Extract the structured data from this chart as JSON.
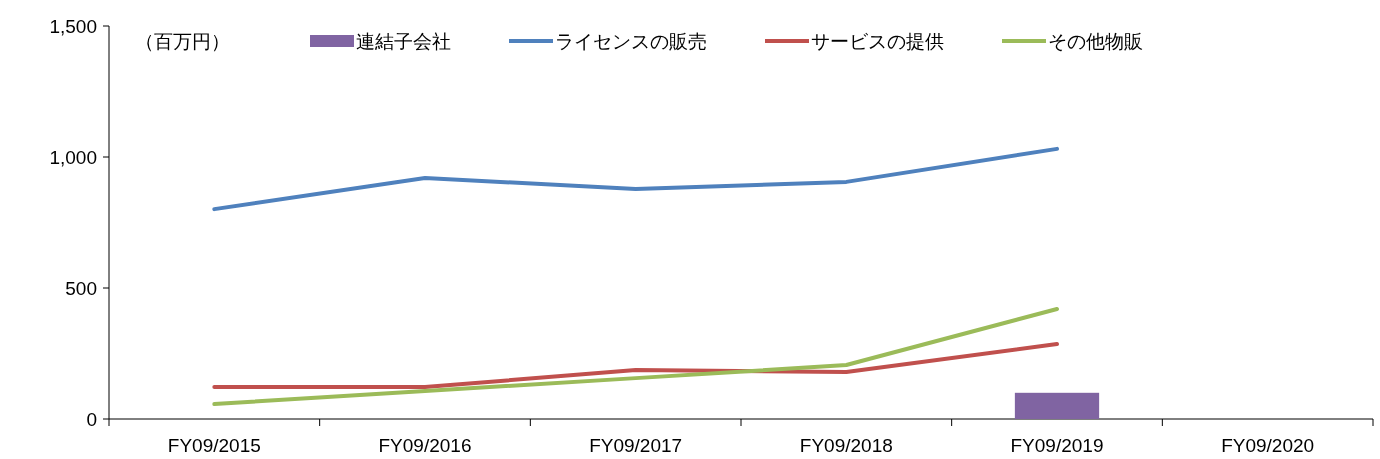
{
  "chart_data": {
    "type": "line",
    "categories": [
      "FY09/2015",
      "FY09/2016",
      "FY09/2017",
      "FY09/2018",
      "FY09/2019",
      "FY09/2020"
    ],
    "series": [
      {
        "name": "連結子会社",
        "type": "bar",
        "color": "#8064a2",
        "values": [
          null,
          null,
          null,
          null,
          100,
          null
        ]
      },
      {
        "name": "ライセンスの販売",
        "color": "#4f81bd",
        "values": [
          801,
          920,
          878,
          905,
          1031,
          null
        ]
      },
      {
        "name": "サービスの提供",
        "color": "#c0504d",
        "values": [
          122,
          122,
          187,
          179,
          286,
          null
        ]
      },
      {
        "name": "その他物販",
        "color": "#9bbb59",
        "values": [
          57,
          107,
          156,
          206,
          420,
          null
        ]
      }
    ],
    "ylim": [
      0,
      1500
    ],
    "yticks": [
      0,
      500,
      {
        "value": 1000,
        "label": "1,000"
      },
      {
        "value": 1500,
        "label": "1,500"
      }
    ],
    "annotations": [
      "（百万円）"
    ],
    "legend": "top",
    "grid": false,
    "marker": "none",
    "line_style": "solid"
  }
}
